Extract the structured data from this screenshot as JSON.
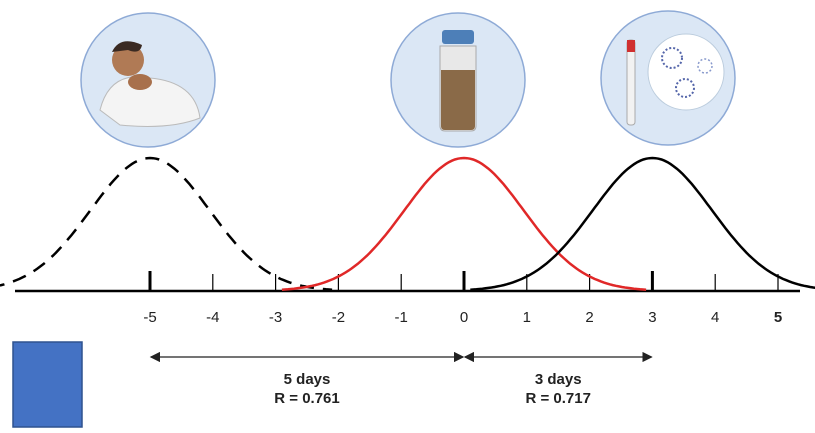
{
  "axis": {
    "ticks": [
      -5,
      -4,
      -3,
      -2,
      -1,
      0,
      1,
      2,
      3,
      4,
      5
    ],
    "major": [
      -5,
      0,
      3
    ]
  },
  "curves": [
    {
      "center": -5,
      "color": "#000000",
      "dashed": true
    },
    {
      "center": 0,
      "color": "#e02828",
      "dashed": false
    },
    {
      "center": 3,
      "color": "#000000",
      "dashed": false
    }
  ],
  "spans": [
    {
      "from": -5,
      "to": 0,
      "label": "5 days",
      "correlation": "R = 0.761"
    },
    {
      "from": 0,
      "to": 3,
      "label": "3 days",
      "correlation": "R = 0.717"
    }
  ]
}
